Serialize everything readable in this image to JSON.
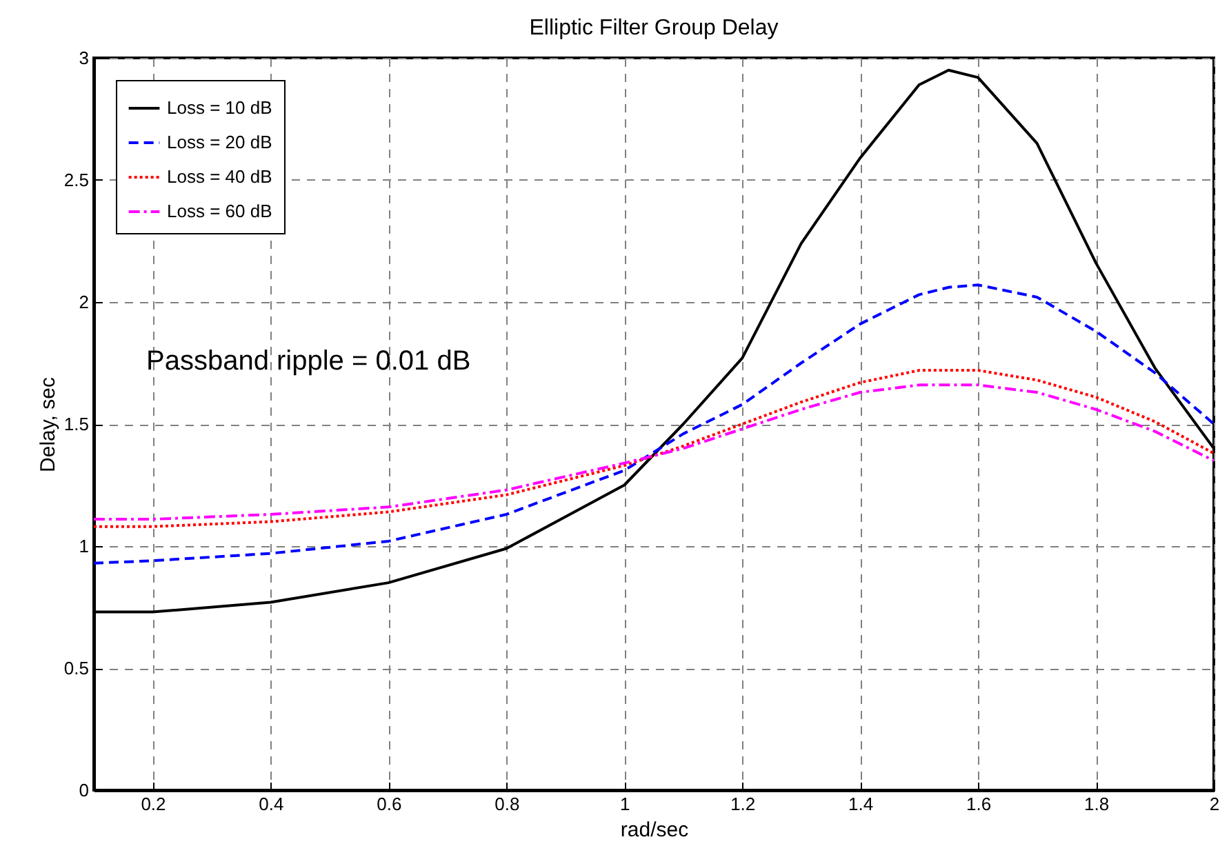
{
  "chart_data": {
    "type": "line",
    "title": "Elliptic Filter Group Delay",
    "xlabel": "rad/sec",
    "ylabel": "Delay, sec",
    "annotations": [
      "Passband ripple = 0.01 dB"
    ],
    "x": [
      0.1,
      0.2,
      0.4,
      0.6,
      0.8,
      1.0,
      1.1,
      1.2,
      1.3,
      1.4,
      1.5,
      1.55,
      1.6,
      1.7,
      1.8,
      1.9,
      2.0
    ],
    "series": [
      {
        "name": "Loss = 10 dB",
        "color": "#000000",
        "line_style": "solid",
        "values": [
          0.73,
          0.73,
          0.77,
          0.85,
          0.99,
          1.25,
          1.5,
          1.77,
          2.24,
          2.59,
          2.89,
          2.95,
          2.92,
          2.65,
          2.16,
          1.73,
          1.4
        ]
      },
      {
        "name": "Loss = 20 dB",
        "color": "#0000ff",
        "line_style": "dashed",
        "values": [
          0.93,
          0.94,
          0.97,
          1.02,
          1.13,
          1.31,
          1.46,
          1.58,
          1.75,
          1.91,
          2.03,
          2.06,
          2.07,
          2.02,
          1.88,
          1.71,
          1.5
        ]
      },
      {
        "name": "Loss = 40 dB",
        "color": "#ff0000",
        "line_style": "dotted",
        "values": [
          1.08,
          1.08,
          1.1,
          1.14,
          1.21,
          1.33,
          1.41,
          1.5,
          1.59,
          1.67,
          1.72,
          1.72,
          1.72,
          1.68,
          1.61,
          1.51,
          1.38
        ]
      },
      {
        "name": "Loss = 60 dB",
        "color": "#ff00ff",
        "line_style": "dashdot",
        "values": [
          1.11,
          1.11,
          1.13,
          1.16,
          1.23,
          1.34,
          1.4,
          1.48,
          1.56,
          1.63,
          1.66,
          1.66,
          1.66,
          1.63,
          1.56,
          1.47,
          1.35
        ]
      }
    ],
    "xlim": [
      0.1,
      2
    ],
    "xticks": [
      0.2,
      0.4,
      0.6,
      0.8,
      1,
      1.2,
      1.4,
      1.6,
      1.8,
      2
    ],
    "ylim": [
      0,
      3
    ],
    "yticks": [
      0,
      0.5,
      1,
      1.5,
      2,
      2.5,
      3
    ],
    "grid": true,
    "legend": "top left"
  }
}
